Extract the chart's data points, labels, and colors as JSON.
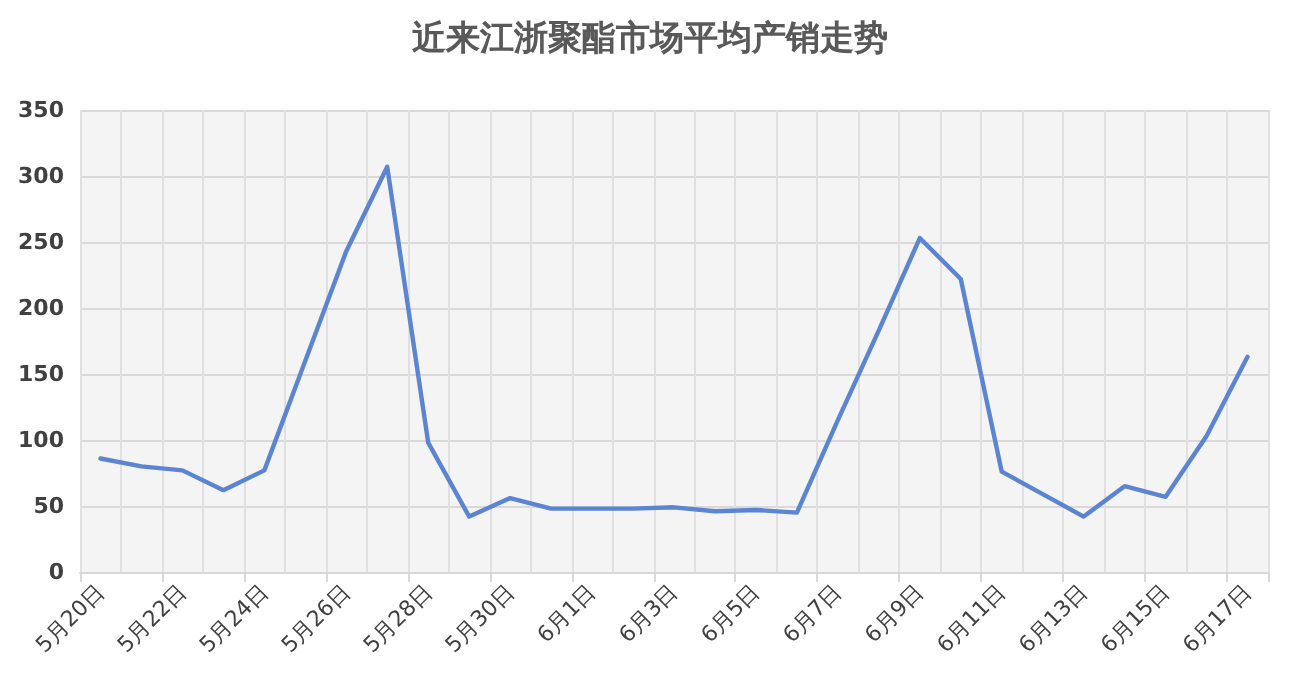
{
  "chart_data": {
    "type": "line",
    "title": "近来江浙聚酯市场平均产销走势",
    "categories": [
      "5月20日",
      null,
      "5月22日",
      null,
      "5月24日",
      null,
      "5月26日",
      null,
      "5月28日",
      null,
      "5月30日",
      null,
      "6月1日",
      null,
      "6月3日",
      null,
      "6月5日",
      null,
      "6月7日",
      null,
      "6月9日",
      null,
      "6月11日",
      null,
      "6月13日",
      null,
      "6月15日",
      null,
      "6月17日"
    ],
    "series": [
      {
        "color": "#5b84d2",
        "values": [
          86,
          80,
          77,
          62,
          77,
          160,
          243,
          307,
          98,
          42,
          56,
          48,
          48,
          48,
          49,
          46,
          47,
          45,
          115,
          183,
          253,
          222,
          76,
          59,
          42,
          65,
          57,
          103,
          163
        ]
      }
    ],
    "ylim": [
      0,
      350
    ],
    "yticks": [
      0,
      50,
      100,
      150,
      200,
      250,
      300,
      350
    ],
    "grid": true,
    "marker": "none",
    "line_style": "solid"
  }
}
